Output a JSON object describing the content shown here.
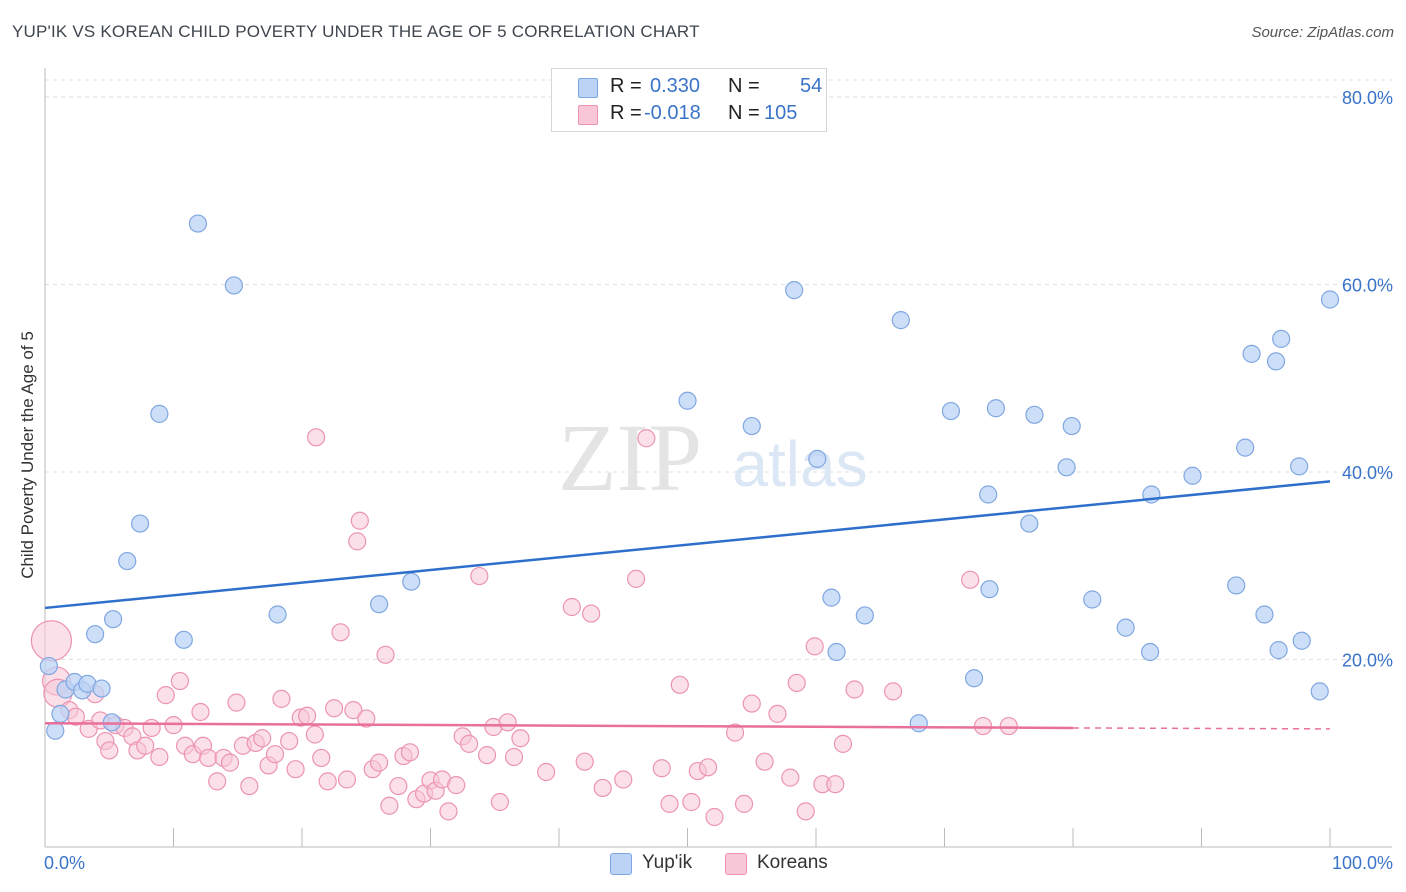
{
  "title": "YUP'IK VS KOREAN CHILD POVERTY UNDER THE AGE OF 5 CORRELATION CHART",
  "source": "Source: ZipAtlas.com",
  "watermark": {
    "zip": "ZIP",
    "atlas": "atlas"
  },
  "legend_stats": {
    "series1": {
      "r_label": "R =",
      "r_value": "0.330",
      "n_label": "N =",
      "n_value": "54"
    },
    "series2": {
      "r_label": "R =",
      "r_value": "-0.018",
      "n_label": "N =",
      "n_value": "105"
    }
  },
  "colors": {
    "blue_fill": "#bcd3f5",
    "blue_stroke": "#7fa7e0",
    "blue_line": "#2e6fcc",
    "pink_fill": "#f8c6d7",
    "pink_stroke": "#ec93b2",
    "pink_line": "#e8709b",
    "axis_text": "#3a74c9",
    "grid": "#dddddd"
  },
  "chart_data": {
    "type": "scatter",
    "title": "YUP'IK VS KOREAN CHILD POVERTY UNDER THE AGE OF 5 CORRELATION CHART",
    "xlabel": "",
    "ylabel": "Child Poverty Under the Age of 5",
    "xlim": [
      0,
      100
    ],
    "ylim": [
      0,
      80
    ],
    "x_tick_labels": [
      "0.0%",
      "100.0%"
    ],
    "y_ticks": [
      20,
      40,
      60,
      80
    ],
    "y_tick_labels": [
      "20.0%",
      "40.0%",
      "60.0%",
      "80.0%"
    ],
    "grid": true,
    "legend_position": "bottom",
    "series": [
      {
        "name": "Yup'ik",
        "trend": {
          "x": [
            0,
            100
          ],
          "y": [
            25.5,
            39
          ]
        },
        "points": [
          [
            0.3,
            19.3
          ],
          [
            0.8,
            12.4
          ],
          [
            1.2,
            14.2
          ],
          [
            1.6,
            16.8
          ],
          [
            2.3,
            17.6
          ],
          [
            2.9,
            16.7
          ],
          [
            3.3,
            17.4
          ],
          [
            3.9,
            22.7
          ],
          [
            4.4,
            16.9
          ],
          [
            5.2,
            13.3
          ],
          [
            5.3,
            24.3
          ],
          [
            6.4,
            30.5
          ],
          [
            7.4,
            34.5
          ],
          [
            8.9,
            46.2
          ],
          [
            10.8,
            22.1
          ],
          [
            11.9,
            66.5
          ],
          [
            14.7,
            59.9
          ],
          [
            18.1,
            24.8
          ],
          [
            26.0,
            25.9
          ],
          [
            28.5,
            28.3
          ],
          [
            50.0,
            47.6
          ],
          [
            55.0,
            44.9
          ],
          [
            58.3,
            59.4
          ],
          [
            60.1,
            41.4
          ],
          [
            61.2,
            26.6
          ],
          [
            61.6,
            20.8
          ],
          [
            63.8,
            24.7
          ],
          [
            66.6,
            56.2
          ],
          [
            68.0,
            13.2
          ],
          [
            70.5,
            46.5
          ],
          [
            72.3,
            18.0
          ],
          [
            73.4,
            37.6
          ],
          [
            73.5,
            27.5
          ],
          [
            74.0,
            46.8
          ],
          [
            76.6,
            34.5
          ],
          [
            77.0,
            46.1
          ],
          [
            79.5,
            40.5
          ],
          [
            79.9,
            44.9
          ],
          [
            81.5,
            26.4
          ],
          [
            84.1,
            23.4
          ],
          [
            86.0,
            20.8
          ],
          [
            86.1,
            37.6
          ],
          [
            89.3,
            39.6
          ],
          [
            92.7,
            27.9
          ],
          [
            93.4,
            42.6
          ],
          [
            93.9,
            52.6
          ],
          [
            94.9,
            24.8
          ],
          [
            95.8,
            51.8
          ],
          [
            96.0,
            21.0
          ],
          [
            96.2,
            54.2
          ],
          [
            97.6,
            40.6
          ],
          [
            97.8,
            22.0
          ],
          [
            99.2,
            16.6
          ],
          [
            100.0,
            58.4
          ]
        ]
      },
      {
        "name": "Koreans",
        "trend": {
          "x": [
            0,
            80
          ],
          "y": [
            13.2,
            12.7
          ]
        },
        "trend_dashed": {
          "x": [
            80,
            100
          ],
          "y": [
            12.7,
            12.6
          ]
        },
        "points": [
          [
            0.5,
            22.0
          ],
          [
            0.9,
            17.7
          ],
          [
            1.0,
            16.4
          ],
          [
            1.9,
            14.6
          ],
          [
            2.4,
            13.9
          ],
          [
            3.4,
            12.6
          ],
          [
            3.9,
            16.3
          ],
          [
            4.3,
            13.5
          ],
          [
            4.7,
            11.3
          ],
          [
            5.0,
            10.3
          ],
          [
            5.5,
            13.0
          ],
          [
            6.2,
            12.7
          ],
          [
            6.8,
            11.8
          ],
          [
            7.2,
            10.3
          ],
          [
            7.8,
            10.8
          ],
          [
            8.3,
            12.7
          ],
          [
            8.9,
            9.6
          ],
          [
            9.4,
            16.2
          ],
          [
            10.0,
            13.0
          ],
          [
            10.5,
            17.7
          ],
          [
            10.9,
            10.8
          ],
          [
            11.5,
            9.9
          ],
          [
            12.1,
            14.4
          ],
          [
            12.3,
            10.8
          ],
          [
            12.7,
            9.5
          ],
          [
            13.4,
            7.0
          ],
          [
            13.9,
            9.5
          ],
          [
            14.4,
            9.0
          ],
          [
            14.9,
            15.4
          ],
          [
            15.4,
            10.8
          ],
          [
            15.9,
            6.5
          ],
          [
            16.4,
            11.1
          ],
          [
            16.9,
            11.6
          ],
          [
            17.4,
            8.7
          ],
          [
            17.9,
            9.9
          ],
          [
            18.4,
            15.8
          ],
          [
            19.0,
            11.3
          ],
          [
            19.5,
            8.3
          ],
          [
            19.9,
            13.8
          ],
          [
            20.4,
            14.0
          ],
          [
            21.0,
            12.0
          ],
          [
            21.5,
            9.5
          ],
          [
            22.0,
            7.0
          ],
          [
            22.5,
            14.8
          ],
          [
            23.0,
            22.9
          ],
          [
            23.5,
            7.2
          ],
          [
            24.0,
            14.6
          ],
          [
            24.5,
            34.8
          ],
          [
            24.3,
            32.6
          ],
          [
            25.0,
            13.7
          ],
          [
            25.5,
            8.3
          ],
          [
            26.0,
            9.0
          ],
          [
            26.5,
            20.5
          ],
          [
            26.8,
            4.4
          ],
          [
            27.5,
            6.5
          ],
          [
            27.9,
            9.7
          ],
          [
            28.4,
            10.1
          ],
          [
            28.9,
            5.1
          ],
          [
            29.5,
            5.7
          ],
          [
            30.0,
            7.1
          ],
          [
            30.4,
            6.0
          ],
          [
            30.9,
            7.2
          ],
          [
            31.4,
            3.8
          ],
          [
            32.0,
            6.6
          ],
          [
            32.5,
            11.8
          ],
          [
            33.0,
            11.0
          ],
          [
            33.8,
            28.9
          ],
          [
            34.4,
            9.8
          ],
          [
            34.9,
            12.8
          ],
          [
            35.4,
            4.8
          ],
          [
            36.0,
            13.3
          ],
          [
            36.5,
            9.6
          ],
          [
            37.0,
            11.6
          ],
          [
            39.0,
            8.0
          ],
          [
            41.0,
            25.6
          ],
          [
            42.0,
            9.1
          ],
          [
            42.5,
            24.9
          ],
          [
            43.4,
            6.3
          ],
          [
            45.0,
            7.2
          ],
          [
            46.0,
            28.6
          ],
          [
            46.8,
            43.6
          ],
          [
            48.0,
            8.4
          ],
          [
            48.6,
            4.6
          ],
          [
            49.4,
            17.3
          ],
          [
            50.3,
            4.8
          ],
          [
            50.8,
            8.1
          ],
          [
            51.6,
            8.5
          ],
          [
            52.1,
            3.2
          ],
          [
            53.7,
            12.2
          ],
          [
            54.4,
            4.6
          ],
          [
            55.0,
            15.3
          ],
          [
            56.0,
            9.1
          ],
          [
            57.0,
            14.2
          ],
          [
            58.0,
            7.4
          ],
          [
            58.5,
            17.5
          ],
          [
            59.2,
            3.8
          ],
          [
            59.9,
            21.4
          ],
          [
            60.5,
            6.7
          ],
          [
            61.5,
            6.7
          ],
          [
            62.1,
            11.0
          ],
          [
            63.0,
            16.8
          ],
          [
            66.0,
            16.6
          ],
          [
            72.0,
            28.5
          ],
          [
            73.0,
            12.9
          ],
          [
            75.0,
            12.9
          ],
          [
            21.1,
            43.7
          ]
        ]
      }
    ]
  },
  "bottom_legend": {
    "series1": "Yup'ik",
    "series2": "Koreans"
  }
}
